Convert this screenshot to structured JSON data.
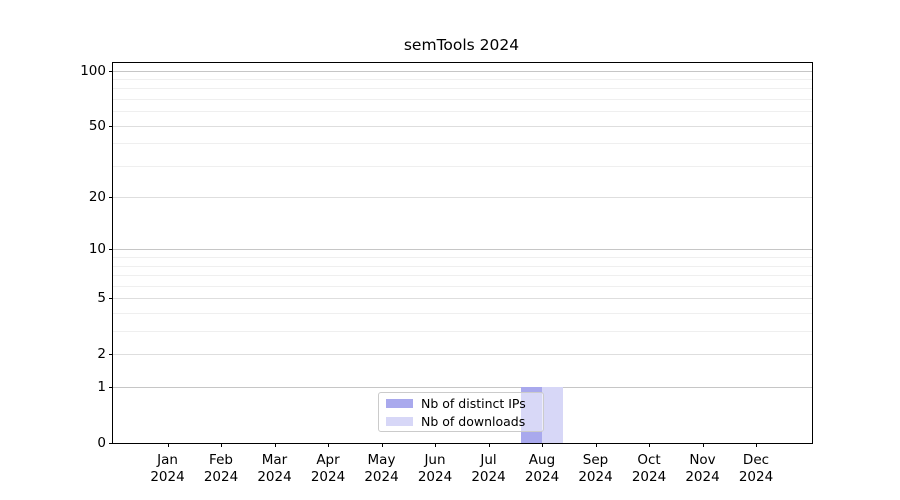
{
  "chart_data": {
    "type": "bar",
    "title": "semTools 2024",
    "categories": [
      "Jan",
      "Feb",
      "Mar",
      "Apr",
      "May",
      "Jun",
      "Jul",
      "Aug",
      "Sep",
      "Oct",
      "Nov",
      "Dec"
    ],
    "category_year": "2024",
    "series": [
      {
        "name": "Nb of distinct IPs",
        "color": "#a9a9ed",
        "values": [
          0,
          0,
          0,
          0,
          0,
          0,
          0,
          1,
          0,
          0,
          0,
          0
        ]
      },
      {
        "name": "Nb of downloads",
        "color": "#d7d7f7",
        "values": [
          0,
          0,
          0,
          0,
          0,
          0,
          0,
          1,
          0,
          0,
          0,
          0
        ]
      }
    ],
    "y_scale": "log1p",
    "ylim": [
      0,
      100
    ],
    "y_tick_labels": [
      0,
      1,
      2,
      5,
      10,
      20,
      50,
      100
    ],
    "y_power_gridlines": [
      1,
      10,
      100
    ],
    "y_labeled_gridlines": [
      2,
      5,
      20,
      50
    ],
    "y_minor_gridlines": [
      3,
      4,
      6,
      7,
      8,
      9,
      30,
      40,
      60,
      70,
      80,
      90
    ],
    "grid": true,
    "legend_position": "lower center"
  },
  "colors": {
    "axis": "#000000",
    "power_grid": "#c6c6c6",
    "labeled_grid": "#dedede",
    "minor_grid": "#efefef",
    "legend_border": "#cbcbcb"
  }
}
